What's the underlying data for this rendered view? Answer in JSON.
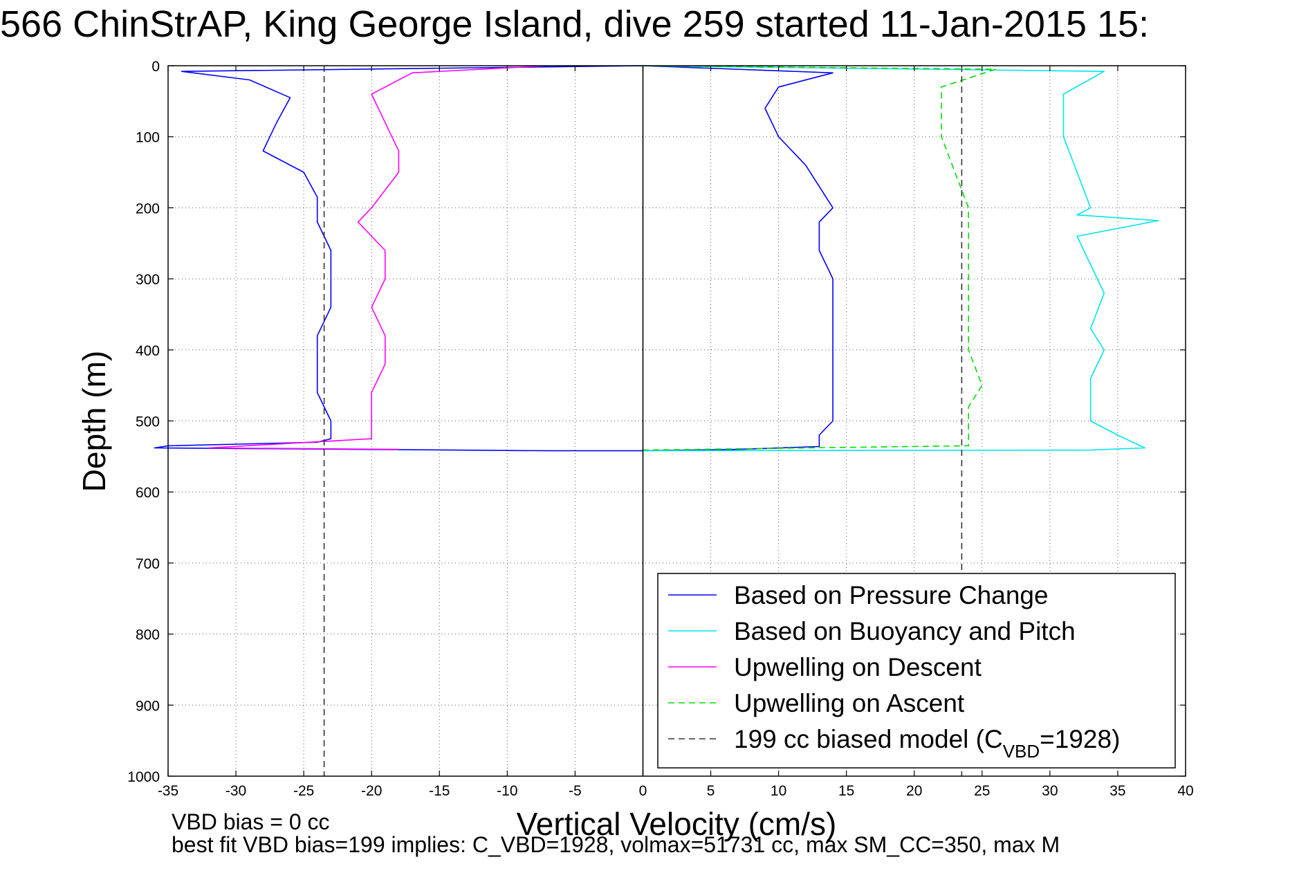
{
  "chart_data": {
    "type": "line",
    "title": "566 ChinStrAP, King George Island, dive 259 started 11-Jan-2015 15:",
    "xlabel": "Vertical Velocity (cm/s)",
    "ylabel": "Depth (m)",
    "xlim": [
      -35,
      40
    ],
    "ylim": [
      0,
      1000
    ],
    "y_reversed": true,
    "grid": true,
    "legend_position": "lower-right",
    "x_ticks": [
      "-35",
      "-30",
      "-25",
      "-20",
      "-15",
      "-10",
      "-5",
      "0",
      "5",
      "10",
      "15",
      "20",
      "25",
      "30",
      "35",
      "40"
    ],
    "y_ticks": [
      "0",
      "100",
      "200",
      "300",
      "400",
      "500",
      "600",
      "700",
      "800",
      "900",
      "1000"
    ],
    "series": [
      {
        "name": "Based on Pressure Change",
        "color": "#0000ff",
        "style": "solid",
        "x": [
          0,
          -34,
          -29,
          -26,
          -27,
          -28,
          -25,
          -24,
          -24,
          -23,
          -23,
          -23,
          -24,
          -24,
          -24,
          -23,
          -23,
          -24,
          -35,
          -36,
          -7,
          0
        ],
        "y": [
          0,
          8,
          20,
          45,
          80,
          120,
          150,
          185,
          220,
          260,
          300,
          340,
          380,
          420,
          460,
          500,
          525,
          530,
          535,
          538,
          542,
          542
        ],
        "x2": [
          0,
          14,
          10,
          9,
          10,
          12,
          13,
          14,
          13,
          13,
          14,
          14,
          14,
          14,
          14,
          14,
          14,
          13,
          13,
          13,
          7,
          0
        ],
        "y2": [
          0,
          10,
          30,
          60,
          100,
          140,
          170,
          200,
          220,
          260,
          300,
          340,
          380,
          420,
          460,
          480,
          500,
          520,
          530,
          536,
          540,
          542
        ]
      },
      {
        "name": "Based on Buoyancy and Pitch",
        "color": "#00e5ee",
        "style": "solid",
        "x": [
          0,
          34,
          31,
          31,
          32,
          33,
          32,
          38,
          32,
          33,
          34,
          33,
          34,
          33,
          33,
          33,
          35,
          37,
          33,
          0
        ],
        "y": [
          0,
          8,
          40,
          100,
          150,
          200,
          210,
          218,
          240,
          280,
          320,
          370,
          400,
          440,
          480,
          500,
          520,
          538,
          541,
          542
        ]
      },
      {
        "name": "Upwelling on Descent",
        "color": "#ff00ff",
        "style": "solid",
        "x": [
          -7,
          -17,
          -20,
          -19,
          -18,
          -18,
          -20,
          -21,
          -19,
          -19,
          -20,
          -19,
          -19,
          -20,
          -20,
          -20,
          -32,
          -18
        ],
        "y": [
          0,
          10,
          40,
          80,
          120,
          150,
          200,
          220,
          260,
          300,
          340,
          380,
          420,
          460,
          500,
          525,
          538,
          540
        ]
      },
      {
        "name": "Upwelling on Ascent",
        "color": "#00dd00",
        "style": "dashed",
        "x": [
          0,
          26,
          22,
          22,
          23,
          24,
          24,
          24,
          24,
          24,
          24,
          25,
          24,
          24,
          24,
          0
        ],
        "y": [
          0,
          5,
          30,
          100,
          150,
          200,
          218,
          250,
          300,
          350,
          400,
          450,
          480,
          510,
          535,
          541
        ]
      },
      {
        "name": "199 cc biased model (C",
        "name_sub": "VBD",
        "name_suffix": "=1928)",
        "color": "#333333",
        "style": "dashed",
        "x": [
          -23.5,
          -23.5,
          23.5,
          23.5
        ],
        "y": [
          0,
          1000,
          0,
          1000
        ]
      },
      {
        "name": "",
        "color": "#000000",
        "style": "solid",
        "x": [
          0,
          0
        ],
        "y": [
          0,
          1000
        ]
      }
    ],
    "notes": [
      "VBD bias = 0 cc",
      "best fit VBD bias=199 implies: C_VBD=1928, volmax=51731 cc, max SM_CC=350, max M"
    ]
  }
}
